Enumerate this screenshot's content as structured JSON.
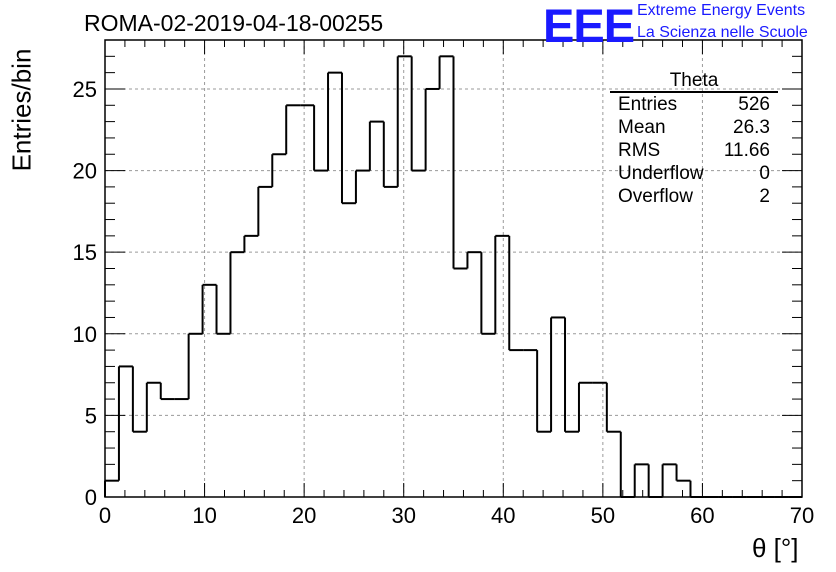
{
  "header": {
    "title": "ROMA-02-2019-04-18-00255"
  },
  "logo": {
    "mark": "EEE",
    "line1": "Extreme Energy Events",
    "line2": "La Scienza nelle Scuole",
    "color": "#1a1aff"
  },
  "stats": {
    "name": "Theta",
    "rows": [
      {
        "label": "Entries",
        "value": "526"
      },
      {
        "label": "Mean",
        "value": "26.3"
      },
      {
        "label": "RMS",
        "value": "11.66"
      },
      {
        "label": "Underflow",
        "value": "0"
      },
      {
        "label": "Overflow",
        "value": "2"
      }
    ]
  },
  "chart_data": {
    "type": "histogram",
    "xlabel": "θ [°]",
    "ylabel": "Entries/bin",
    "xlim": [
      0,
      70
    ],
    "ylim": [
      0,
      28
    ],
    "bin_width": 1.4,
    "values": [
      1,
      8,
      4,
      7,
      6,
      6,
      10,
      13,
      10,
      15,
      16,
      19,
      21,
      24,
      24,
      20,
      26,
      18,
      20,
      23,
      19,
      27,
      20,
      25,
      27,
      14,
      15,
      10,
      16,
      9,
      9,
      4,
      11,
      4,
      7,
      7,
      4,
      0,
      2,
      0,
      2,
      1,
      0,
      0,
      0,
      0,
      0,
      0,
      0,
      0
    ],
    "xticks": [
      0,
      10,
      20,
      30,
      40,
      50,
      60,
      70
    ],
    "yticks": [
      0,
      5,
      10,
      15,
      20,
      25
    ],
    "grid": true,
    "line_color": "#000000"
  }
}
